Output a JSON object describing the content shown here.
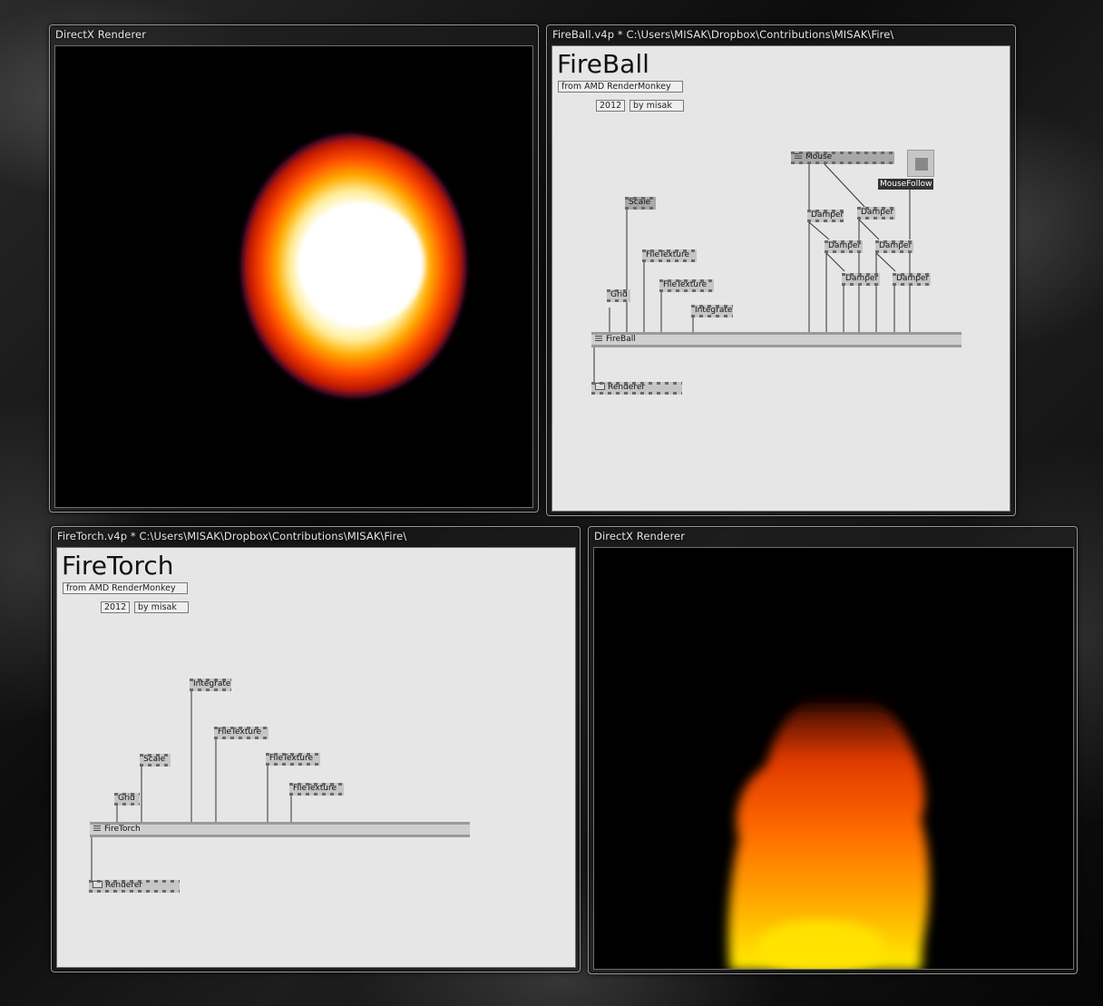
{
  "windows": {
    "renderer_top": {
      "title": "DirectX Renderer"
    },
    "fireball_patch": {
      "title": "FireBall.v4p *  C:\\Users\\MISAK\\Dropbox\\Contributions\\MISAK\\Fire\\",
      "heading": "FireBall",
      "subtitle": "from AMD RenderMonkey",
      "year": "2012",
      "author": "by misak",
      "nodes": {
        "mouse": "Mouse",
        "mousefollow": "MouseFollow",
        "scale": "Scale",
        "filetexture1": "FileTexture",
        "filetexture2": "FileTexture",
        "grid": "Grid",
        "integrate": "Integrate",
        "damper": "Damper",
        "fireball": "FireBall",
        "renderer": "Renderer"
      }
    },
    "firetorch_patch": {
      "title": "FireTorch.v4p *  C:\\Users\\MISAK\\Dropbox\\Contributions\\MISAK\\Fire\\",
      "heading": "FireTorch",
      "subtitle": "from AMD RenderMonkey",
      "year": "2012",
      "author": "by misak",
      "nodes": {
        "integrate": "Integrate",
        "filetexture1": "FileTexture",
        "scale": "Scale",
        "filetexture2": "FileTexture",
        "filetexture3": "FileTexture",
        "grid": "Grid",
        "firetorch": "FireTorch",
        "renderer": "Renderer"
      }
    },
    "renderer_bottom": {
      "title": "DirectX Renderer"
    }
  },
  "colors": {
    "patch_bg": "#e6e6e6",
    "node_fill": "#c6c6c6",
    "render_bg": "#000000",
    "flame_core": "#ffffff",
    "flame_mid": "#ffb000",
    "flame_outer": "#ff3a00"
  }
}
